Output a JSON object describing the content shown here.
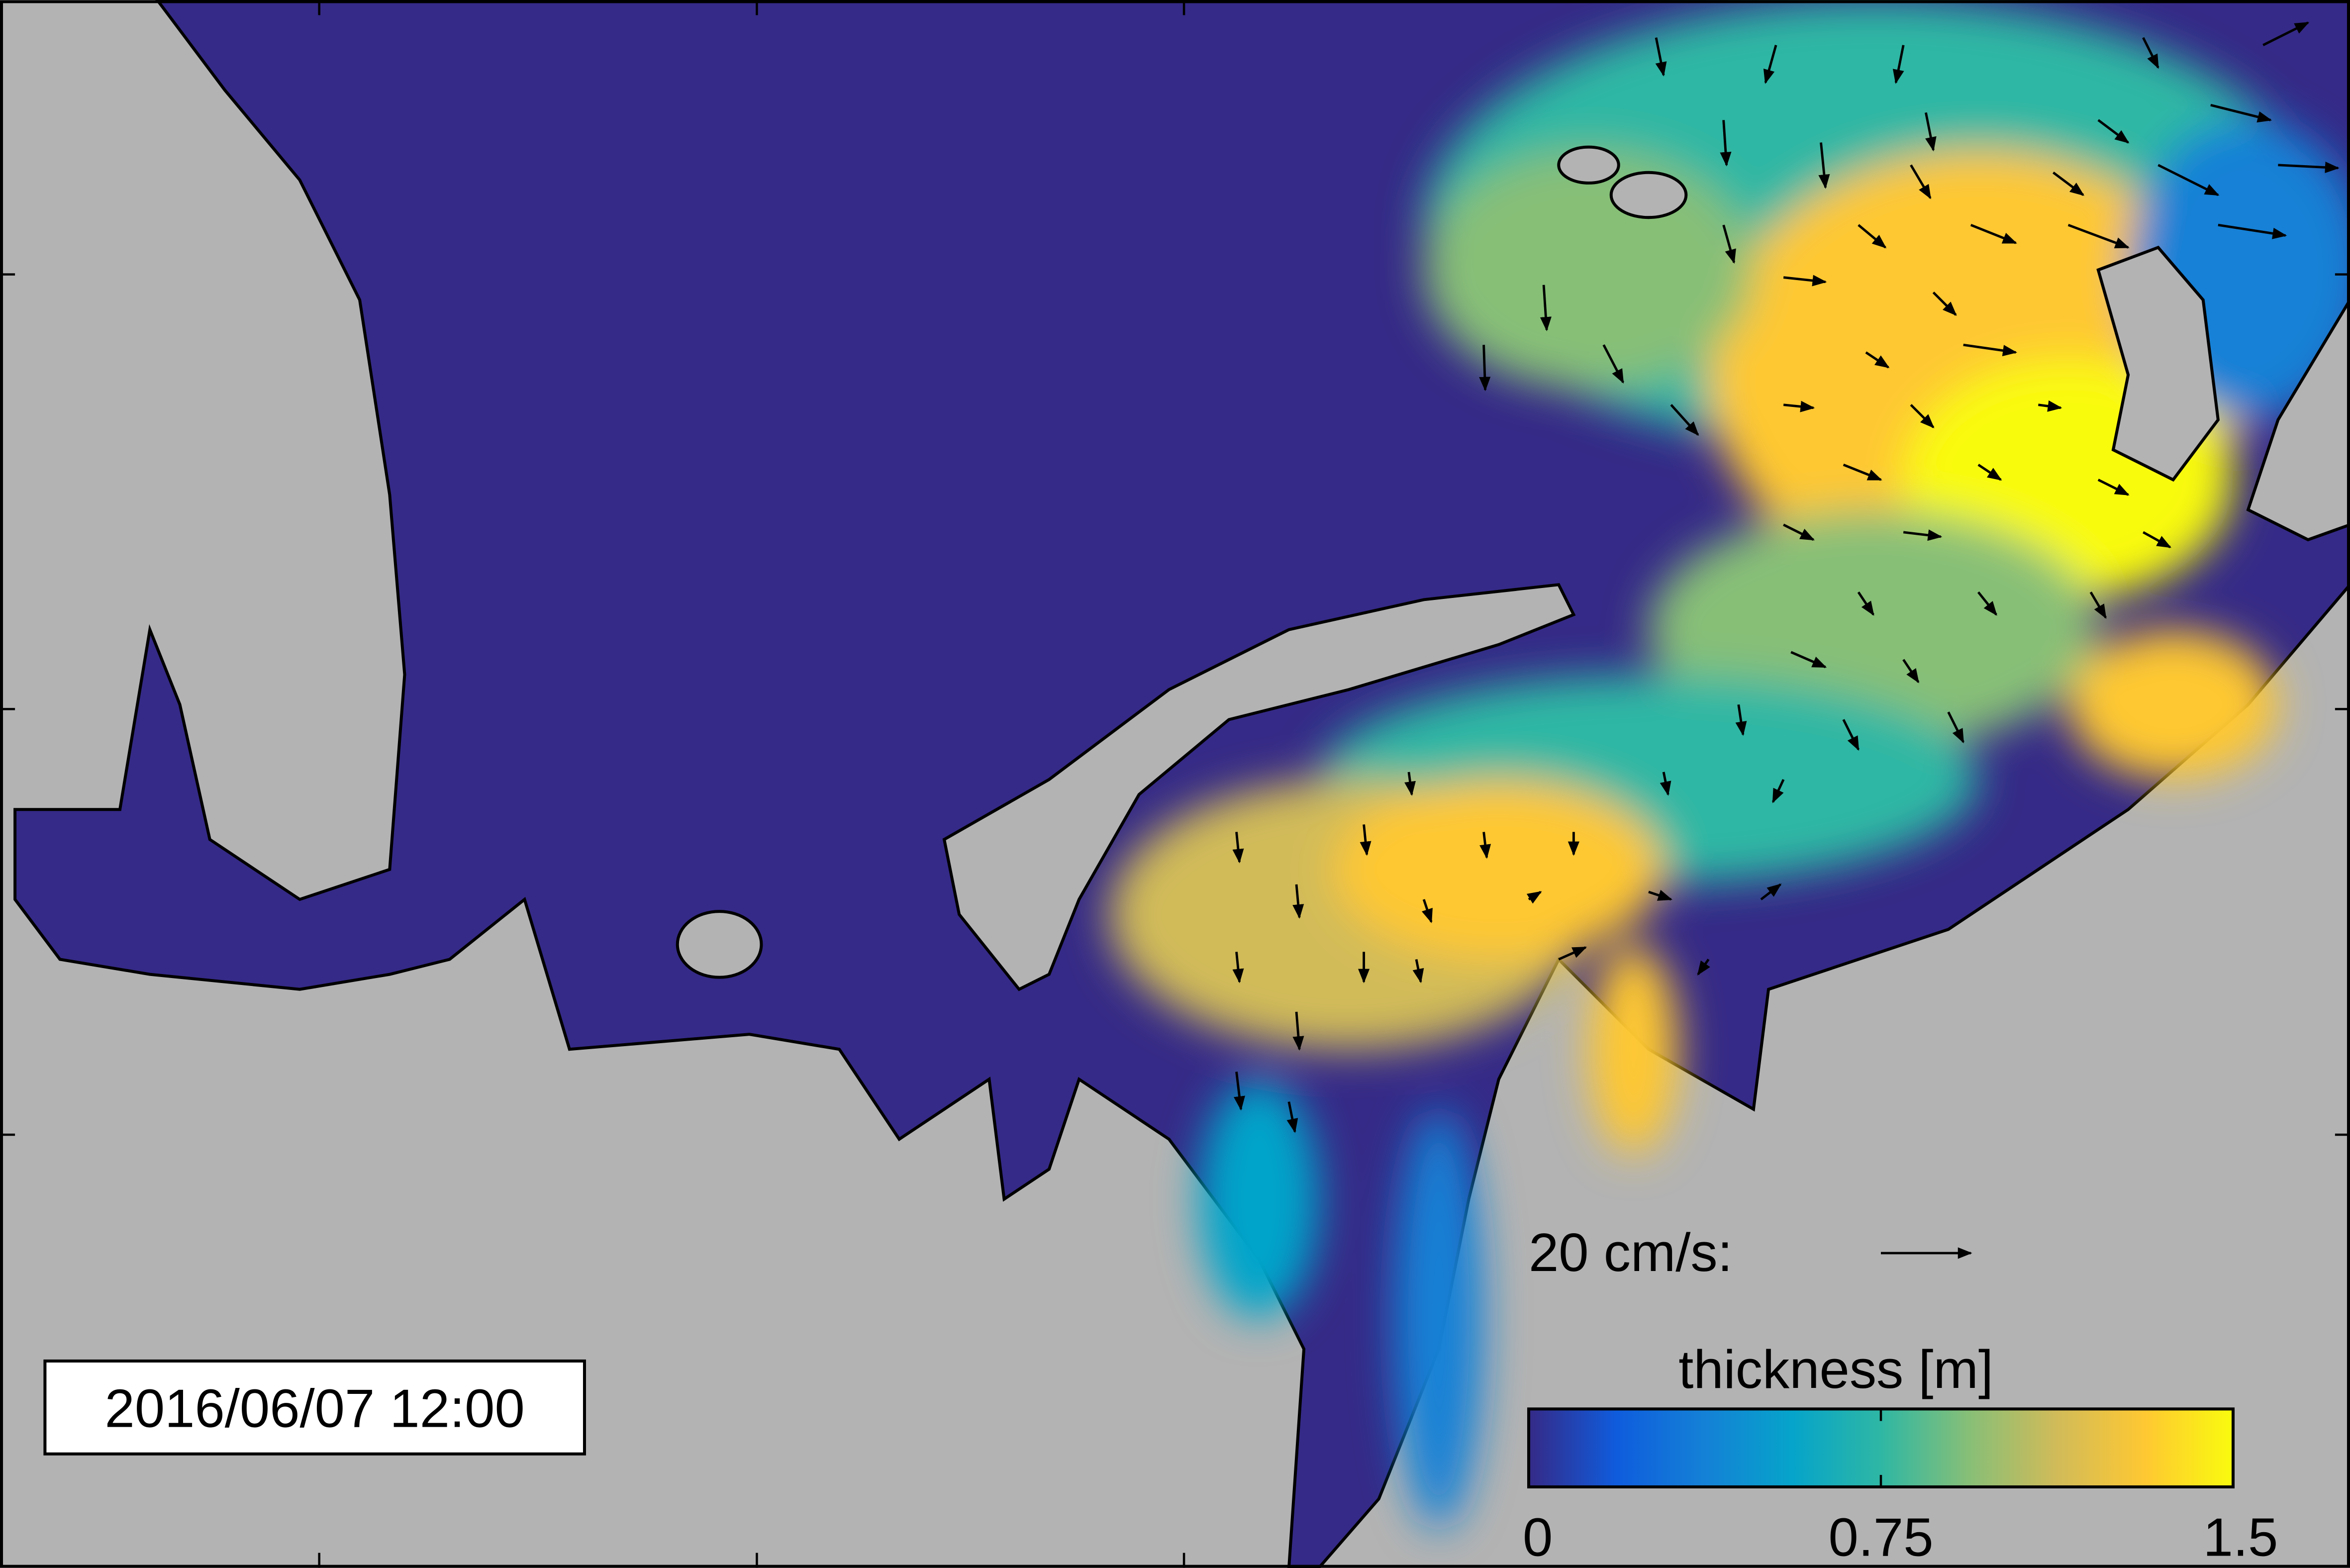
{
  "timestamp": "2016/06/07 12:00",
  "scale_label": "20 cm/s:",
  "colorbar": {
    "label": "thickness [m]",
    "lim": [
      0,
      1.5
    ],
    "ticks": [
      0,
      0.75,
      1.5
    ],
    "colormap": [
      "#352a87",
      "#0f5cdd",
      "#1481d6",
      "#06a4ca",
      "#2eb7a4",
      "#87bf77",
      "#d1bb59",
      "#fec832",
      "#f9fb0e"
    ]
  }
}
